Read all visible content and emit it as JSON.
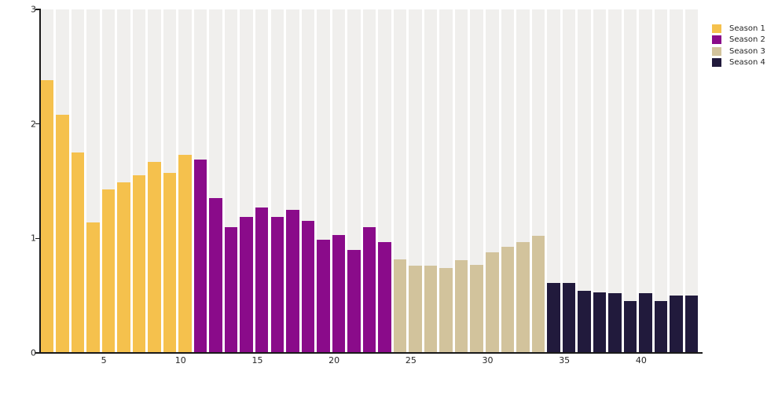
{
  "chart_data": {
    "type": "bar",
    "title": "",
    "xlabel": "",
    "ylabel": "",
    "ylim": [
      0,
      3
    ],
    "y_ticks": [
      0,
      1,
      2,
      3
    ],
    "x_ticks": [
      5,
      10,
      15,
      20,
      25,
      30,
      35,
      40
    ],
    "grid": "off",
    "legend_position": "top-right",
    "background_stripe_color": "#F0EFED",
    "n_bars": 43,
    "series": [
      {
        "name": "Season 1",
        "color": "#F5C14D",
        "values": [
          2.38,
          2.08,
          1.75,
          1.14,
          1.43,
          1.49,
          1.55,
          1.67,
          1.57,
          1.73
        ]
      },
      {
        "name": "Season 2",
        "color": "#8A0B8A",
        "values": [
          1.69,
          1.35,
          1.1,
          1.19,
          1.27,
          1.19,
          1.25,
          1.15,
          0.99,
          1.03,
          0.9,
          1.1,
          0.97
        ]
      },
      {
        "name": "Season 3",
        "color": "#D2C39C",
        "values": [
          0.82,
          0.76,
          0.76,
          0.74,
          0.81,
          0.77,
          0.88,
          0.93,
          0.97,
          1.02
        ]
      },
      {
        "name": "Season 4",
        "color": "#211A3C",
        "values": [
          0.61,
          0.61,
          0.54,
          0.53,
          0.52,
          0.45,
          0.52,
          0.45,
          0.5,
          0.5
        ]
      }
    ],
    "legend": {
      "items": [
        {
          "label": "Season 1"
        },
        {
          "label": "Season 2"
        },
        {
          "label": "Season 3"
        },
        {
          "label": "Season 4"
        }
      ]
    }
  }
}
